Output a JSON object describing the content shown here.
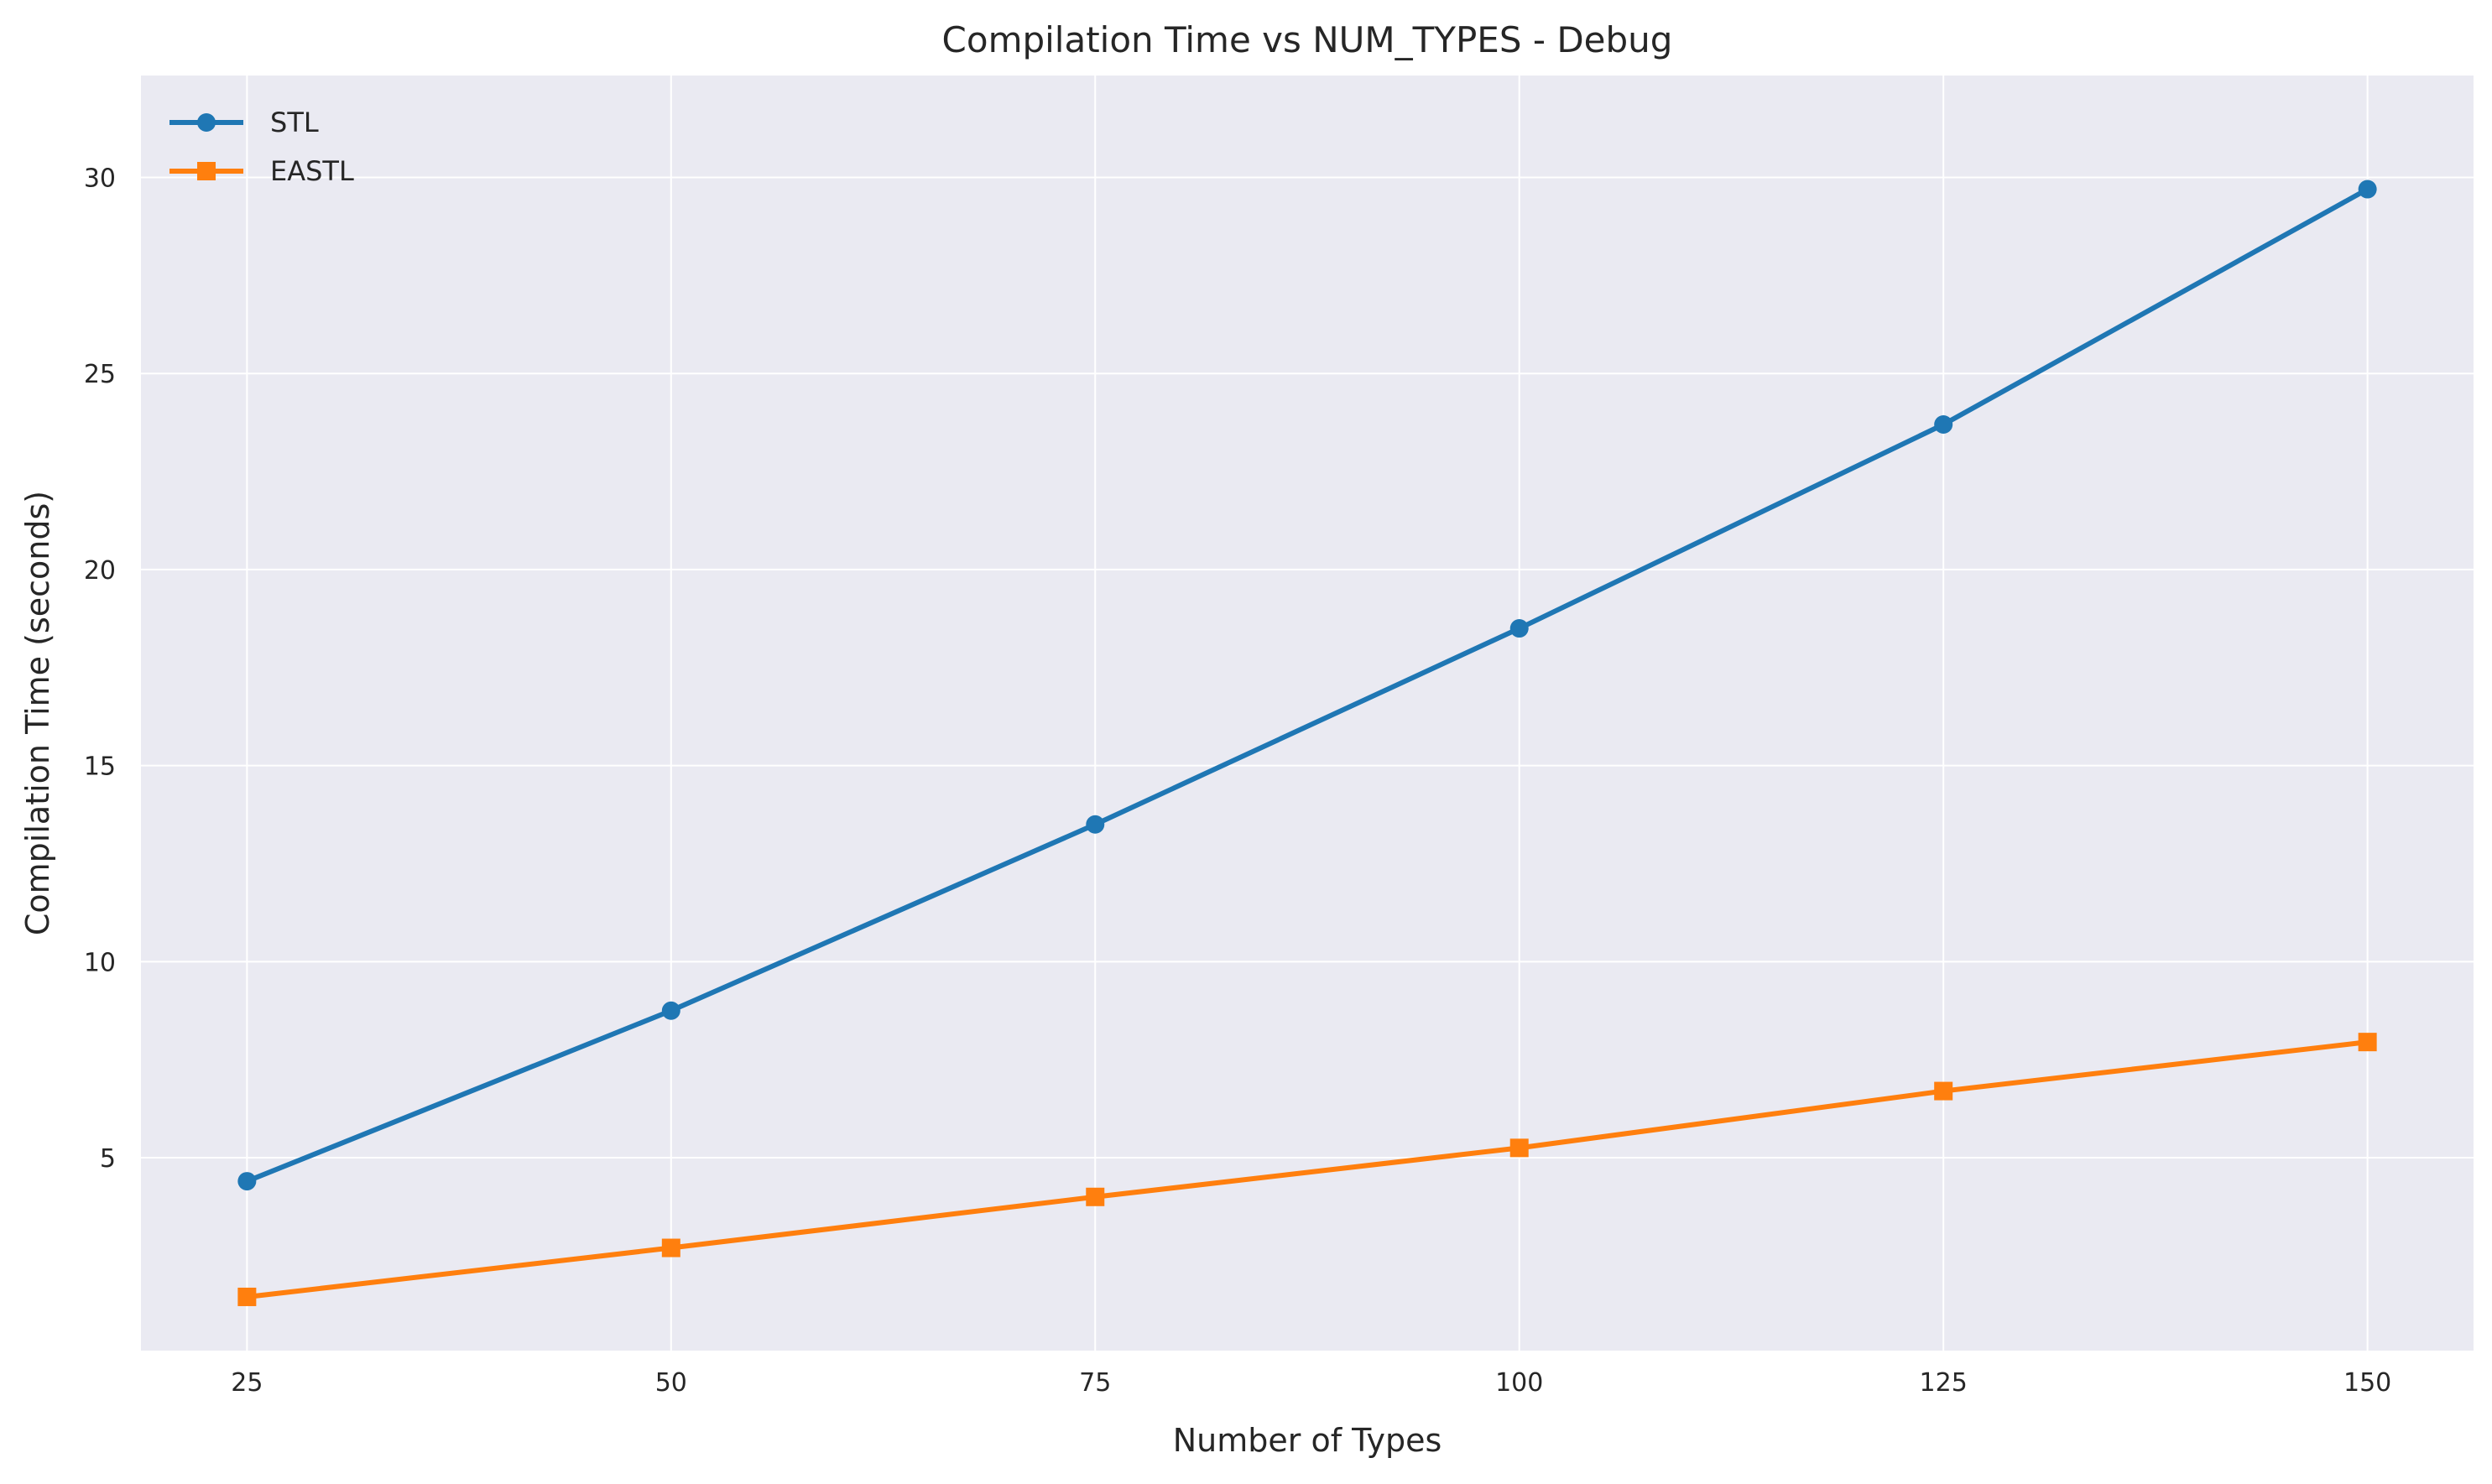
{
  "chart_data": {
    "type": "line",
    "title": "Compilation Time vs NUM_TYPES - Debug",
    "xlabel": "Number of Types",
    "ylabel": "Compilation Time (seconds)",
    "x": [
      25,
      50,
      75,
      100,
      125,
      150
    ],
    "xticks": [
      "25",
      "50",
      "75",
      "100",
      "125",
      "150"
    ],
    "yticks": [
      "5",
      "10",
      "15",
      "20",
      "25",
      "30"
    ],
    "xlim": [
      18.75,
      156.25
    ],
    "ylim": [
      0.08,
      32.6
    ],
    "grid": true,
    "legend_position": "top-left",
    "series": [
      {
        "name": "STL",
        "values": [
          4.4,
          8.75,
          13.5,
          18.5,
          23.7,
          29.7
        ],
        "color": "#1f77b4",
        "marker": "circle"
      },
      {
        "name": "EASTL",
        "values": [
          1.45,
          2.7,
          4.0,
          5.25,
          6.7,
          7.95
        ],
        "color": "#ff7f0e",
        "marker": "square"
      }
    ]
  }
}
